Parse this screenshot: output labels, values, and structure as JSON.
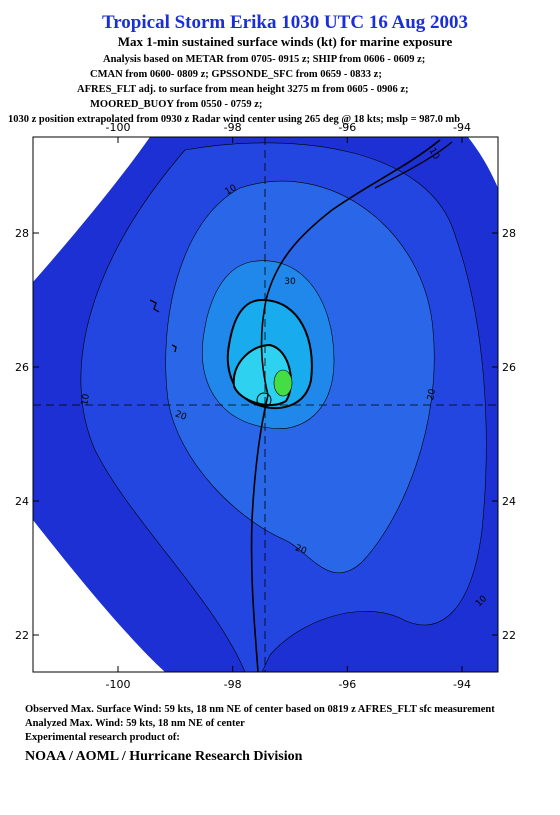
{
  "header": {
    "title": "Tropical Storm Erika 1030 UTC 16 Aug 2003",
    "subtitle": "Max 1-min sustained surface winds (kt) for marine exposure",
    "lines": [
      "Analysis based on  METAR from  0705- 0915 z;  SHIP from 0606 - 0609 z;",
      "CMAN from  0600- 0809 z;  GPSSONDE_SFC from 0659 -  0833 z;",
      "AFRES_FLT adj. to surface from mean height 3275 m from 0605 - 0906 z;",
      "MOORED_BUOY from 0550 - 0759 z;",
      "1030 z position extrapolated from 0930 z Radar wind center using 265 deg @ 18 kts; mslp = 987.0 mb"
    ]
  },
  "map": {
    "lon_ticks": [
      -100,
      -98,
      -96,
      -94
    ],
    "lat_ticks": [
      22,
      24,
      26,
      28
    ],
    "contour_labels": [
      "10",
      "10",
      "10",
      "10",
      "20",
      "20",
      "20",
      "30"
    ]
  },
  "footer": {
    "lines": [
      "Observed Max. Surface Wind: 59 kts, 18 nm NE of center based on 0819 z AFRES_FLT sfc measurement",
      "Analyzed Max. Wind: 59 kts, 18 nm NE of center",
      "Experimental research product of:"
    ],
    "org": "NOAA / AOML / Hurricane Research Division"
  }
}
